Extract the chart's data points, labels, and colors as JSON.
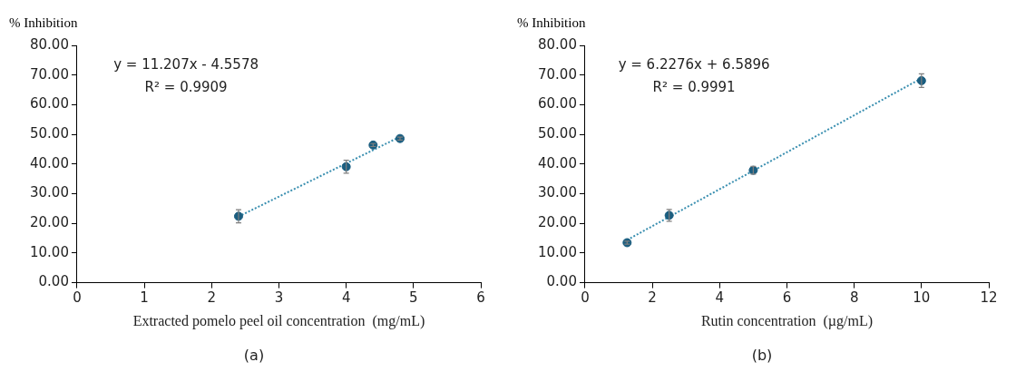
{
  "chart_data": [
    {
      "type": "scatter",
      "title": "(a)",
      "xlabel": "Extracted pomelo peel oil concentration  (mg/mL)",
      "ylabel": "% Inhibition",
      "annotations": [
        "y = 11.207x - 4.5578",
        "R² = 0.9909"
      ],
      "legend": false,
      "xlim": [
        0,
        6
      ],
      "xticks": [
        0,
        1,
        2,
        3,
        4,
        5,
        6
      ],
      "ylim": [
        0,
        80
      ],
      "yticks": [
        {
          "value": 0,
          "label": "0.00"
        },
        {
          "value": 10,
          "label": "10.00"
        },
        {
          "value": 20,
          "label": "20.00"
        },
        {
          "value": 30,
          "label": "30.00"
        },
        {
          "value": 40,
          "label": "40.00"
        },
        {
          "value": 50,
          "label": "50.00"
        },
        {
          "value": 60,
          "label": "60.00"
        },
        {
          "value": 70,
          "label": "70.00"
        },
        {
          "value": 80,
          "label": "80.00"
        }
      ],
      "series": [
        {
          "color": "#1b5e80",
          "marker": "circle",
          "x": [
            2.4,
            4.0,
            4.4,
            4.8
          ],
          "values": [
            22.4,
            39.1,
            46.4,
            48.6
          ],
          "errors": [
            2.2,
            2.2,
            0.5,
            0.5
          ]
        },
        {
          "type": "line",
          "color": "#3a8fb0",
          "marker": "none",
          "line_style": "dotted",
          "x": [
            2.4,
            4.8
          ],
          "values": [
            22.3,
            49.2
          ]
        }
      ]
    },
    {
      "type": "scatter",
      "title": "(b)",
      "xlabel": "Rutin concentration  (µg/mL)",
      "ylabel": "% Inhibition",
      "annotations": [
        "y = 6.2276x + 6.5896",
        "R² = 0.9991"
      ],
      "legend": false,
      "xlim": [
        0,
        12
      ],
      "xticks": [
        0,
        2,
        4,
        6,
        8,
        10,
        12
      ],
      "ylim": [
        0,
        80
      ],
      "yticks": [
        {
          "value": 0,
          "label": "0.00"
        },
        {
          "value": 10,
          "label": "10.00"
        },
        {
          "value": 20,
          "label": "20.00"
        },
        {
          "value": 30,
          "label": "30.00"
        },
        {
          "value": 40,
          "label": "40.00"
        },
        {
          "value": 50,
          "label": "50.00"
        },
        {
          "value": 60,
          "label": "60.00"
        },
        {
          "value": 70,
          "label": "70.00"
        },
        {
          "value": 80,
          "label": "80.00"
        }
      ],
      "series": [
        {
          "color": "#1b5e80",
          "marker": "circle",
          "x": [
            1.25,
            2.5,
            5.0,
            10.0
          ],
          "values": [
            13.5,
            22.7,
            37.9,
            68.1
          ],
          "errors": [
            0.5,
            2.0,
            1.3,
            2.3
          ]
        },
        {
          "type": "line",
          "color": "#3a8fb0",
          "marker": "none",
          "line_style": "dotted",
          "x": [
            1.25,
            10.0
          ],
          "values": [
            14.4,
            68.9
          ]
        }
      ]
    }
  ]
}
